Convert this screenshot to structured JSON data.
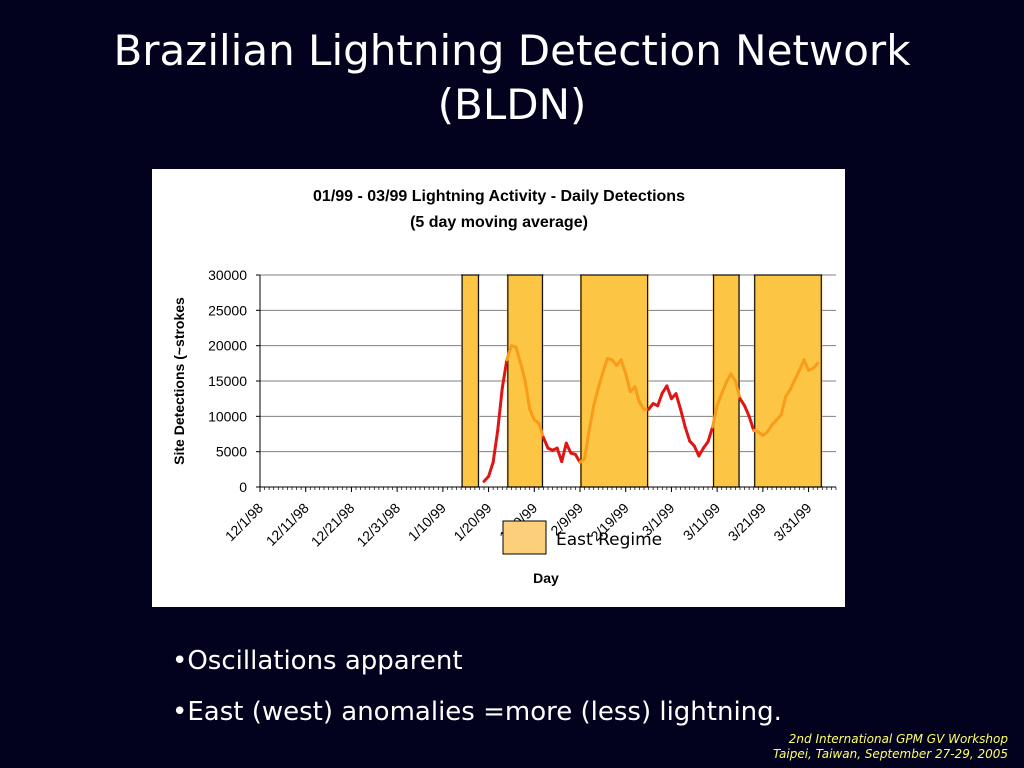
{
  "slide": {
    "title_line1": "Brazilian Lightning Detection Network",
    "title_line2": "(BLDN)",
    "bullets": [
      "Oscillations apparent",
      "East (west) anomalies =more (less) lightning."
    ],
    "footer": {
      "line1": "2nd International GPM GV Workshop",
      "line2": "Taipei, Taiwan, September 27-29, 2005"
    }
  },
  "chart_data": {
    "type": "line",
    "title": "01/99 - 03/99 Lightning Activity - Daily Detections",
    "subtitle": "(5 day moving average)",
    "xlabel": "Day",
    "ylabel": "Site Detections (~strokes",
    "ylim": [
      0,
      30000
    ],
    "yticks": [
      0,
      5000,
      10000,
      15000,
      20000,
      25000,
      30000
    ],
    "x_start": "1998-12-01",
    "x_end": "1999-04-06",
    "xtick_labels": [
      "12/1/98",
      "12/11/98",
      "12/21/98",
      "12/31/98",
      "1/10/99",
      "1/20/99",
      "1/30/99",
      "2/9/99",
      "2/19/99",
      "3/1/99",
      "3/11/99",
      "3/21/99",
      "3/31/99"
    ],
    "xtick_dates": [
      "1998-12-01",
      "1998-12-11",
      "1998-12-21",
      "1998-12-31",
      "1999-01-10",
      "1999-01-20",
      "1999-01-30",
      "1999-02-09",
      "1999-02-19",
      "1999-03-01",
      "1999-03-11",
      "1999-03-21",
      "1999-03-31"
    ],
    "grid": true,
    "legend": {
      "label": "East Regime",
      "color": "#fccf7a",
      "placement": "bottom-center"
    },
    "regime_color": "#fcc544",
    "east_regimes": [
      [
        "1999-01-14",
        "1999-01-18"
      ],
      [
        "1999-01-24",
        "1999-02-01"
      ],
      [
        "1999-02-09",
        "1999-02-24"
      ],
      [
        "1999-03-10",
        "1999-03-16"
      ],
      [
        "1999-03-19",
        "1999-04-03"
      ]
    ],
    "series": [
      {
        "colors": {
          "west": "#e01515",
          "east": "#f99c1b"
        },
        "points": [
          [
            "1999-01-19",
            800
          ],
          [
            "1999-01-20",
            1500
          ],
          [
            "1999-01-21",
            3500
          ],
          [
            "1999-01-22",
            8000
          ],
          [
            "1999-01-23",
            14000
          ],
          [
            "1999-01-24",
            18000
          ],
          [
            "1999-01-25",
            20000
          ],
          [
            "1999-01-26",
            19800
          ],
          [
            "1999-01-27",
            17500
          ],
          [
            "1999-01-28",
            15000
          ],
          [
            "1999-01-29",
            11000
          ],
          [
            "1999-01-30",
            9500
          ],
          [
            "1999-01-31",
            9000
          ],
          [
            "1999-02-01",
            7000
          ],
          [
            "1999-02-02",
            5500
          ],
          [
            "1999-02-03",
            5200
          ],
          [
            "1999-02-04",
            5500
          ],
          [
            "1999-02-05",
            3600
          ],
          [
            "1999-02-06",
            6200
          ],
          [
            "1999-02-07",
            4800
          ],
          [
            "1999-02-08",
            4600
          ],
          [
            "1999-02-09",
            3500
          ],
          [
            "1999-02-10",
            4000
          ],
          [
            "1999-02-11",
            8000
          ],
          [
            "1999-02-12",
            11500
          ],
          [
            "1999-02-13",
            14000
          ],
          [
            "1999-02-14",
            16200
          ],
          [
            "1999-02-15",
            18200
          ],
          [
            "1999-02-16",
            18000
          ],
          [
            "1999-02-17",
            17200
          ],
          [
            "1999-02-18",
            18000
          ],
          [
            "1999-02-19",
            16000
          ],
          [
            "1999-02-20",
            13500
          ],
          [
            "1999-02-21",
            14200
          ],
          [
            "1999-02-22",
            12000
          ],
          [
            "1999-02-23",
            11000
          ],
          [
            "1999-02-24",
            11000
          ],
          [
            "1999-02-25",
            11800
          ],
          [
            "1999-02-26",
            11500
          ],
          [
            "1999-02-27",
            13300
          ],
          [
            "1999-02-28",
            14300
          ],
          [
            "1999-03-01",
            12500
          ],
          [
            "1999-03-02",
            13200
          ],
          [
            "1999-03-03",
            11000
          ],
          [
            "1999-03-04",
            8500
          ],
          [
            "1999-03-05",
            6500
          ],
          [
            "1999-03-06",
            5800
          ],
          [
            "1999-03-07",
            4400
          ],
          [
            "1999-03-08",
            5500
          ],
          [
            "1999-03-09",
            6400
          ],
          [
            "1999-03-10",
            8500
          ],
          [
            "1999-03-11",
            11500
          ],
          [
            "1999-03-12",
            13200
          ],
          [
            "1999-03-13",
            14800
          ],
          [
            "1999-03-14",
            16000
          ],
          [
            "1999-03-15",
            15000
          ],
          [
            "1999-03-16",
            12500
          ],
          [
            "1999-03-17",
            11500
          ],
          [
            "1999-03-18",
            10000
          ],
          [
            "1999-03-19",
            8000
          ],
          [
            "1999-03-20",
            7800
          ],
          [
            "1999-03-21",
            7300
          ],
          [
            "1999-03-22",
            7800
          ],
          [
            "1999-03-23",
            8800
          ],
          [
            "1999-03-24",
            9500
          ],
          [
            "1999-03-25",
            10200
          ],
          [
            "1999-03-26",
            12800
          ],
          [
            "1999-03-27",
            13800
          ],
          [
            "1999-03-28",
            15200
          ],
          [
            "1999-03-29",
            16500
          ],
          [
            "1999-03-30",
            18000
          ],
          [
            "1999-03-31",
            16500
          ],
          [
            "1999-04-01",
            16800
          ],
          [
            "1999-04-02",
            17500
          ]
        ]
      }
    ]
  }
}
